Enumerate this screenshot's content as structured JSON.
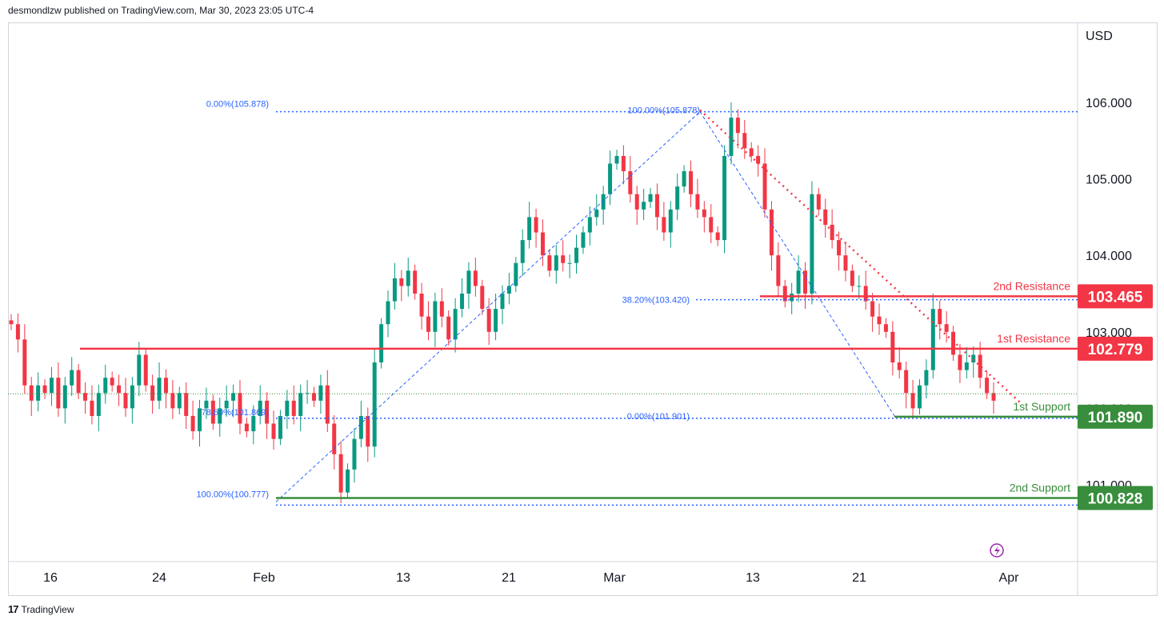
{
  "header": {
    "published_text": "desmondlzw published on TradingView.com, Mar 30, 2023 23:05 UTC-4"
  },
  "footer": {
    "brand": "TradingView",
    "logo_glyph": "17"
  },
  "chart_data": {
    "type": "candlestick",
    "currency": "USD",
    "y_ticks": [
      "106.000",
      "105.000",
      "104.000",
      "103.000",
      "102.000",
      "101.000"
    ],
    "y_range": [
      100.0,
      106.5
    ],
    "x_ticks": [
      "16",
      "24",
      "Feb",
      "13",
      "21",
      "Mar",
      "13",
      "21",
      "Apr"
    ],
    "closes": [
      103.1,
      102.9,
      102.3,
      102.1,
      102.3,
      102.2,
      102.4,
      102.0,
      102.3,
      102.5,
      102.2,
      102.1,
      101.9,
      102.2,
      102.4,
      102.3,
      102.2,
      102.0,
      102.3,
      102.7,
      102.3,
      102.1,
      102.4,
      102.2,
      102.0,
      102.2,
      101.9,
      101.7,
      102.0,
      102.1,
      101.8,
      102.0,
      102.1,
      102.2,
      101.8,
      101.7,
      101.9,
      102.1,
      101.8,
      101.6,
      101.9,
      102.1,
      101.9,
      102.2,
      102.2,
      102.1,
      102.3,
      101.8,
      101.4,
      100.9,
      101.2,
      101.6,
      101.9,
      101.5,
      102.6,
      103.1,
      103.4,
      103.7,
      103.6,
      103.8,
      103.5,
      103.2,
      103.0,
      103.4,
      103.2,
      102.9,
      103.3,
      103.5,
      103.8,
      103.6,
      103.3,
      103.0,
      103.3,
      103.5,
      103.6,
      103.9,
      104.2,
      104.5,
      104.3,
      104.0,
      103.8,
      104.0,
      103.9,
      103.9,
      104.1,
      104.3,
      104.5,
      104.6,
      104.8,
      105.2,
      105.3,
      105.1,
      104.8,
      104.6,
      104.7,
      104.8,
      104.5,
      104.3,
      104.6,
      104.9,
      105.1,
      104.8,
      104.6,
      104.5,
      104.3,
      104.2,
      105.3,
      105.8,
      105.6,
      105.4,
      105.3,
      105.2,
      104.6,
      104.0,
      103.6,
      103.4,
      103.5,
      103.8,
      103.5,
      104.8,
      104.6,
      104.4,
      104.2,
      104.0,
      103.8,
      103.6,
      103.6,
      103.4,
      103.2,
      103.1,
      103.0,
      102.6,
      102.5,
      102.2,
      102.0,
      102.3,
      102.5,
      103.3,
      103.1,
      103.0,
      102.7,
      102.5,
      102.6,
      102.7,
      102.4,
      102.2,
      102.1
    ],
    "fib_left": {
      "top_label": "0.00%(105.878)",
      "top_value": 105.878,
      "mid_label": "78.60%(101.869)",
      "mid_value": 101.869,
      "bottom_label": "100.00%(100.777)",
      "bottom_value": 100.777
    },
    "fib_right": {
      "top_label": "100.00%(105.878)",
      "top_value": 105.878,
      "mid_label": "38.20%(103.420)",
      "mid_value": 103.42,
      "bottom_label": "0.00%(101.901)",
      "bottom_value": 101.901
    },
    "levels": [
      {
        "name": "2nd Resistance",
        "value": "103.465",
        "num": 103.465,
        "color": "#f23645"
      },
      {
        "name": "1st Resistance",
        "value": "102.779",
        "num": 102.779,
        "color": "#f23645"
      },
      {
        "name": "1st Support",
        "value": "101.890",
        "num": 101.89,
        "color": "#388e3c"
      },
      {
        "name": "2nd Support",
        "value": "100.828",
        "num": 100.828,
        "color": "#388e3c"
      }
    ],
    "current_price_line": 102.19,
    "colors": {
      "up": "#089981",
      "down": "#f23645",
      "fib": "#2962ff",
      "grid": "#d1d4dc",
      "support": "#388e3c",
      "resistance": "#f23645",
      "current": "#388e3c"
    }
  }
}
